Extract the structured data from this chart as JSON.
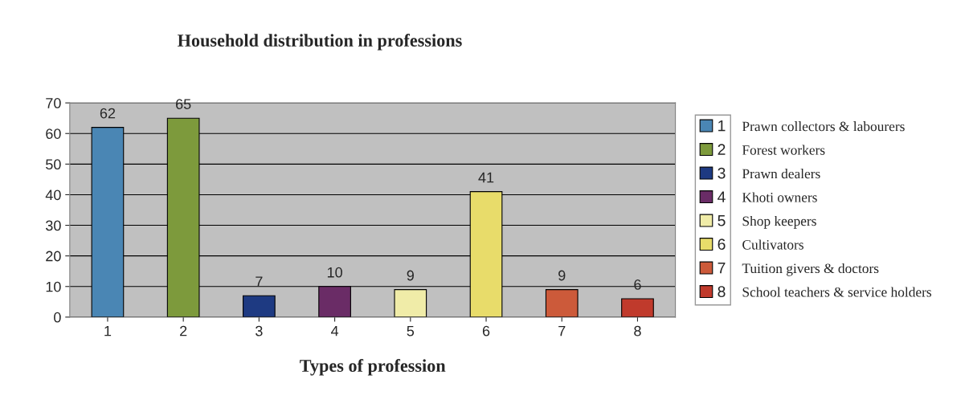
{
  "chart_data": {
    "type": "bar",
    "title": "Household distribution in professions",
    "xlabel": "Types of profession",
    "categories": [
      "1",
      "2",
      "3",
      "4",
      "5",
      "6",
      "7",
      "8"
    ],
    "stacked": true,
    "series": [
      {
        "name": "1",
        "color": "#4a86b4",
        "values": [
          62,
          null,
          null,
          null,
          null,
          null,
          null,
          null
        ]
      },
      {
        "name": "2",
        "color": "#7d9a3c",
        "values": [
          null,
          65,
          null,
          null,
          null,
          null,
          null,
          null
        ]
      },
      {
        "name": "3",
        "color": "#1e3a82",
        "values": [
          null,
          null,
          7,
          null,
          null,
          null,
          null,
          null
        ]
      },
      {
        "name": "4",
        "color": "#6a2c66",
        "values": [
          null,
          null,
          null,
          10,
          null,
          null,
          null,
          null
        ]
      },
      {
        "name": "5",
        "color": "#f0eca8",
        "values": [
          null,
          null,
          null,
          null,
          9,
          null,
          null,
          null
        ]
      },
      {
        "name": "6",
        "color": "#e8dc6a",
        "values": [
          null,
          null,
          null,
          null,
          null,
          41,
          null,
          null
        ]
      },
      {
        "name": "7",
        "color": "#cc5a3a",
        "values": [
          null,
          null,
          null,
          null,
          null,
          null,
          9,
          null
        ]
      },
      {
        "name": "8",
        "color": "#c03a2c",
        "values": [
          null,
          null,
          null,
          null,
          null,
          null,
          null,
          6
        ]
      }
    ],
    "ylim": [
      0,
      70
    ],
    "yticks": [
      0,
      10,
      20,
      30,
      40,
      50,
      60,
      70
    ],
    "grid": "y",
    "data_labels": true,
    "legend": "right",
    "annotations": [
      "Prawn collectors & labourers",
      "Forest workers",
      "Prawn dealers",
      "Khoti owners",
      "Shop keepers",
      "Cultivators",
      "Tuition givers & doctors",
      "School teachers & service holders"
    ]
  }
}
